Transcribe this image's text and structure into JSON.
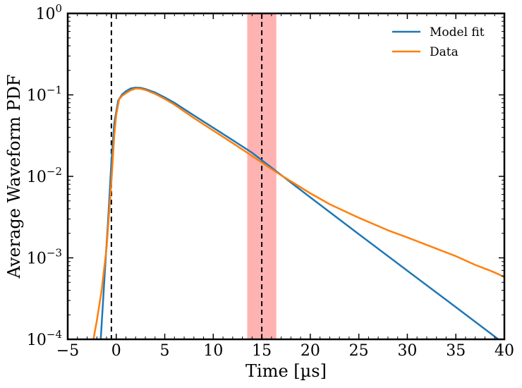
{
  "chart_data": {
    "type": "line",
    "xlabel": "Time [µs]",
    "ylabel": "Average Waveform PDF",
    "xlim": [
      -5,
      40
    ],
    "ylim": [
      0.0001,
      1
    ],
    "yscale": "log",
    "grid": false,
    "legend_position": "top-right",
    "x_ticks": [
      -5,
      0,
      5,
      10,
      15,
      20,
      25,
      30,
      35,
      40
    ],
    "x_tick_labels": [
      "−5",
      "0",
      "5",
      "10",
      "15",
      "20",
      "25",
      "30",
      "35",
      "40"
    ],
    "y_ticks": [
      {
        "value": 0.0001,
        "base": "10",
        "exp": "−4"
      },
      {
        "value": 0.001,
        "base": "10",
        "exp": "−3"
      },
      {
        "value": 0.01,
        "base": "10",
        "exp": "−2"
      },
      {
        "value": 0.1,
        "base": "10",
        "exp": "−1"
      },
      {
        "value": 1,
        "base": "10",
        "exp": "0"
      }
    ],
    "series": [
      {
        "name": "Model fit",
        "color": "#1f77b4",
        "x": [
          -1.6,
          -1.2,
          -0.8,
          -0.5,
          -0.2,
          0.2,
          0.6,
          1.0,
          1.5,
          2.0,
          2.5,
          3.0,
          4.0,
          5.0,
          6.0,
          8.0,
          10.0,
          12.0,
          14.0,
          15.0,
          16.0,
          18.0,
          20.0,
          25.0,
          30.0,
          35.0,
          40.0
        ],
        "y": [
          0.0001,
          0.0006,
          0.0035,
          0.015,
          0.045,
          0.085,
          0.101,
          0.111,
          0.12,
          0.123,
          0.122,
          0.118,
          0.107,
          0.093,
          0.08,
          0.056,
          0.0395,
          0.0278,
          0.0195,
          0.0158,
          0.0128,
          0.0084,
          0.00553,
          0.00195,
          0.000696,
          0.000248,
          8.81e-05
        ]
      },
      {
        "name": "Data",
        "color": "#ff7f0e",
        "x": [
          -2.35,
          -2.0,
          -1.5,
          -1.0,
          -0.5,
          -0.2,
          0.0,
          0.3,
          0.6,
          1.0,
          1.5,
          2.0,
          2.5,
          3.0,
          4.0,
          5.0,
          6.0,
          8.0,
          10.0,
          12.0,
          14.0,
          15.0,
          16.0,
          17.0,
          18.0,
          20.0,
          22.0,
          25.0,
          28.0,
          30.0,
          32.0,
          35.0,
          37.0,
          38.5,
          39.0,
          40.0
        ],
        "y": [
          0.0001,
          0.00017,
          0.0004,
          0.0013,
          0.0085,
          0.032,
          0.057,
          0.088,
          0.097,
          0.105,
          0.114,
          0.12,
          0.119,
          0.115,
          0.103,
          0.089,
          0.076,
          0.052,
          0.0365,
          0.0256,
          0.0178,
          0.0148,
          0.0123,
          0.0103,
          0.0087,
          0.0062,
          0.00455,
          0.0031,
          0.00218,
          0.00178,
          0.00144,
          0.00105,
          0.00082,
          0.0007,
          0.00066,
          0.00058
        ]
      }
    ],
    "vertical_lines": [
      {
        "x": -0.5,
        "style": "dashed",
        "color": "#000000"
      },
      {
        "x": 15,
        "style": "dashed",
        "color": "#000000"
      }
    ],
    "shaded_band": {
      "x_start": 13.5,
      "x_end": 16.5,
      "color": "#ff7f7f"
    }
  }
}
